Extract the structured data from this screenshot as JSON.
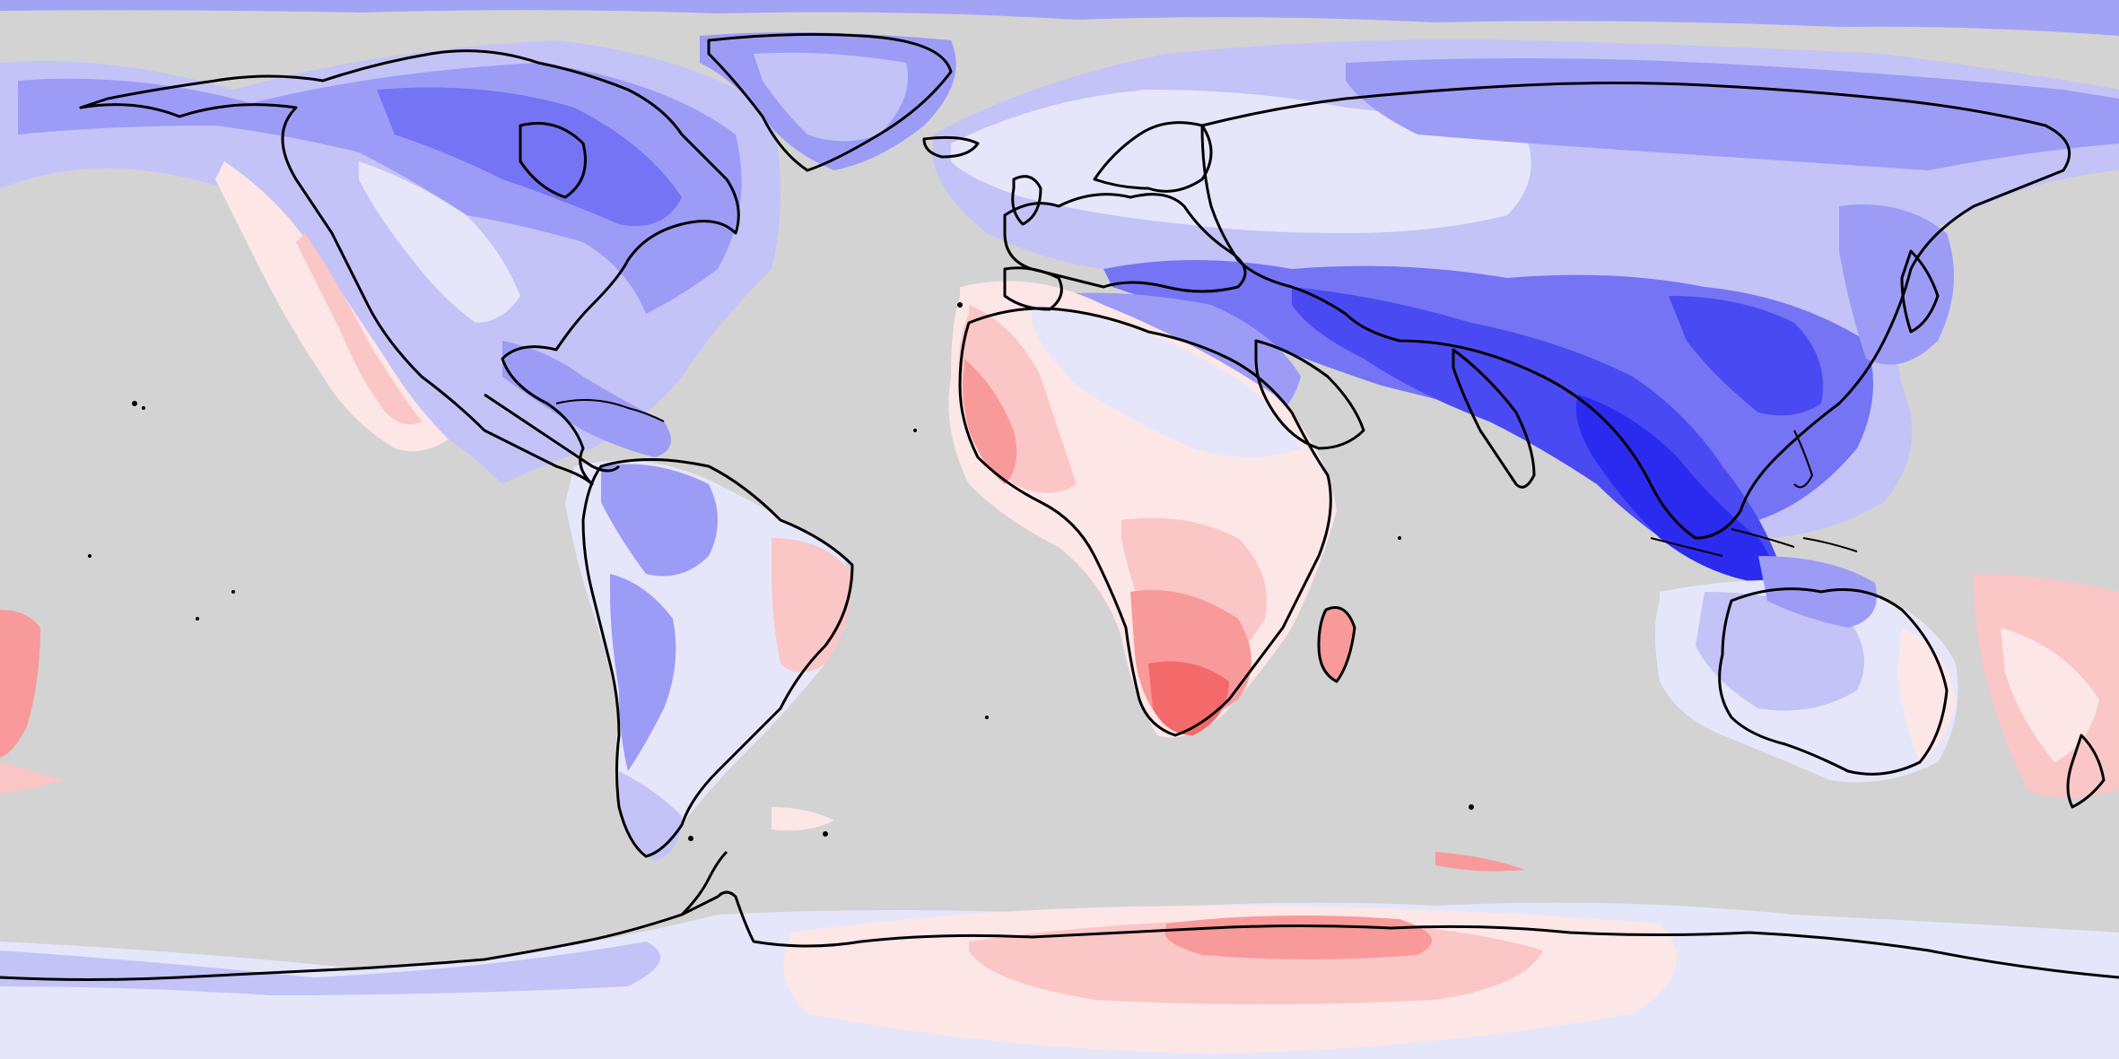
{
  "map": {
    "projection": "equirectangular",
    "ocean_color": "#d3d3d3",
    "coastline_color": "#000000",
    "color_scale": {
      "type": "diverging",
      "colors": [
        "#2b2bf0",
        "#4a4af2",
        "#7474f4",
        "#9c9cf6",
        "#c3c3f8",
        "#e6e6fb",
        "#fde6e6",
        "#fbc6c6",
        "#f89a9a",
        "#f46a6a"
      ]
    }
  }
}
